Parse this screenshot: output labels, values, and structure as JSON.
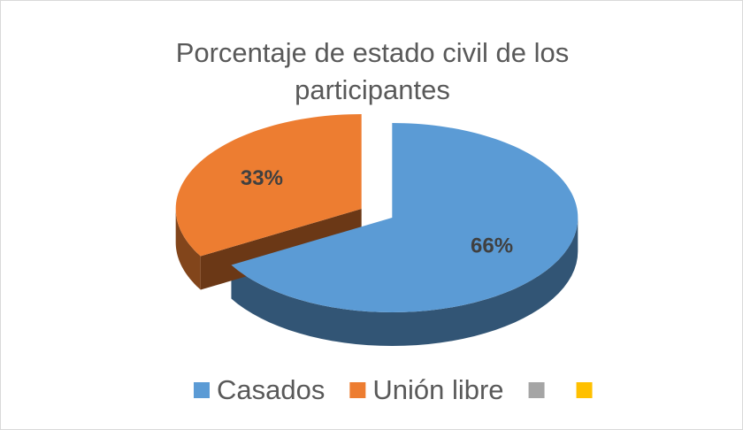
{
  "chart_data": {
    "type": "pie",
    "title": "Porcentaje de estado civil de los participantes",
    "categories": [
      "Casados",
      "Unión libre",
      null,
      null
    ],
    "values": [
      66,
      33,
      0,
      0
    ],
    "value_labels": [
      "66%",
      "33%",
      null,
      null
    ],
    "colors": [
      "#5b9bd5",
      "#ed7d31",
      "#a5a5a5",
      "#ffc000"
    ],
    "legend": "bottom"
  }
}
